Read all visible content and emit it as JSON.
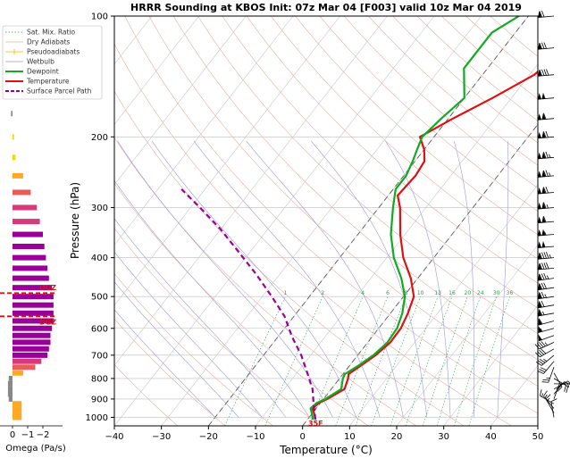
{
  "chart_data": {
    "type": "line",
    "title": "HRRR Sounding at KBOS Init: 07z Mar 04 [F003] valid 10z Mar 04 2019",
    "xlabel": "Temperature (°C)",
    "ylabel": "Pressure (hPa)",
    "xlim": [
      -40,
      50
    ],
    "ylim": [
      1050,
      100
    ],
    "y_scale": "log",
    "x_ticks": [
      "−40",
      "−30",
      "−20",
      "−10",
      "0",
      "10",
      "20",
      "30",
      "40",
      "50"
    ],
    "y_ticks": [
      "100",
      "200",
      "300",
      "400",
      "500",
      "600",
      "700",
      "800",
      "900",
      "1000"
    ],
    "grid": true,
    "legend_position": "top-left",
    "legend": [
      "Sat. Mix. Ratio",
      "Dry Adiabats",
      "Pseudoadiabats",
      "Wetbulb",
      "Dewpoint",
      "Temperature",
      "Surface Parcel Path"
    ],
    "mixing_ratio_labels": [
      "1",
      "2",
      "4",
      "6",
      "8",
      "10",
      "13",
      "16",
      "20",
      "24",
      "30",
      "36"
    ],
    "surface_label": "35F",
    "series": [
      {
        "name": "Temperature",
        "color": "#dd1111",
        "points": [
          [
            1.7,
            1013
          ],
          [
            0.3,
            975
          ],
          [
            -0.8,
            950
          ],
          [
            -0.3,
            920
          ],
          [
            0.8,
            900
          ],
          [
            2.8,
            850
          ],
          [
            1.8,
            800
          ],
          [
            1.2,
            780
          ],
          [
            2.5,
            740
          ],
          [
            3.8,
            700
          ],
          [
            4.8,
            650
          ],
          [
            4.7,
            600
          ],
          [
            3.7,
            550
          ],
          [
            2.2,
            500
          ],
          [
            -1.5,
            450
          ],
          [
            -6.5,
            400
          ],
          [
            -11,
            350
          ],
          [
            -15.5,
            300
          ],
          [
            -18,
            280
          ],
          [
            -17.5,
            250
          ],
          [
            -18,
            230
          ],
          [
            -20,
            215
          ],
          [
            -23,
            200
          ],
          [
            -19,
            180
          ],
          [
            -14,
            160
          ],
          [
            -9,
            140
          ],
          [
            -7,
            120
          ],
          [
            -6,
            100
          ]
        ]
      },
      {
        "name": "Dewpoint",
        "color": "#11aa22",
        "points": [
          [
            1.2,
            1013
          ],
          [
            -0.2,
            975
          ],
          [
            -1.2,
            950
          ],
          [
            -0.8,
            920
          ],
          [
            0.4,
            900
          ],
          [
            2.1,
            850
          ],
          [
            0.7,
            800
          ],
          [
            0.4,
            780
          ],
          [
            2.0,
            740
          ],
          [
            3.3,
            700
          ],
          [
            4.2,
            650
          ],
          [
            3.9,
            600
          ],
          [
            2.5,
            550
          ],
          [
            0.3,
            500
          ],
          [
            -3.5,
            450
          ],
          [
            -8.5,
            400
          ],
          [
            -13,
            350
          ],
          [
            -17,
            300
          ],
          [
            -19.5,
            270
          ],
          [
            -19.5,
            250
          ],
          [
            -20.5,
            230
          ],
          [
            -21.5,
            215
          ],
          [
            -22.5,
            200
          ],
          [
            -21.5,
            180
          ],
          [
            -20,
            160
          ],
          [
            -25,
            135
          ],
          [
            -25,
            110
          ],
          [
            -22,
            100
          ]
        ]
      },
      {
        "name": "Surface Parcel Path",
        "color": "#990099",
        "points": [
          [
            1.7,
            1013
          ],
          [
            -1.5,
            920
          ],
          [
            -4,
            850
          ],
          [
            -7.5,
            780
          ],
          [
            -12,
            700
          ],
          [
            -17,
            630
          ],
          [
            -22,
            560
          ],
          [
            -28,
            500
          ],
          [
            -35,
            440
          ],
          [
            -42,
            390
          ],
          [
            -50,
            340
          ],
          [
            -58,
            300
          ],
          [
            -65,
            270
          ]
        ]
      }
    ],
    "omega": {
      "xlabel": "Omega (Pa/s)",
      "x_ticks": [
        "0",
        "−1",
        "−2"
      ],
      "labels": [
        "DGZ",
        "DGZ"
      ],
      "bars": [
        {
          "p": 1000,
          "v": -0.6
        },
        {
          "p": 975,
          "v": -0.6
        },
        {
          "p": 950,
          "v": -0.6
        },
        {
          "p": 925,
          "v": -0.6
        },
        {
          "p": 900,
          "v": 0.25
        },
        {
          "p": 875,
          "v": 0.3
        },
        {
          "p": 850,
          "v": 0.3
        },
        {
          "p": 825,
          "v": 0.3
        },
        {
          "p": 800,
          "v": 0.25
        },
        {
          "p": 775,
          "v": -0.7
        },
        {
          "p": 750,
          "v": -1.5
        },
        {
          "p": 725,
          "v": -1.9
        },
        {
          "p": 700,
          "v": -2.3
        },
        {
          "p": 675,
          "v": -2.4
        },
        {
          "p": 650,
          "v": -2.5
        },
        {
          "p": 625,
          "v": -2.5
        },
        {
          "p": 600,
          "v": -2.6
        },
        {
          "p": 575,
          "v": -2.7
        },
        {
          "p": 550,
          "v": -2.7
        },
        {
          "p": 525,
          "v": -2.7
        },
        {
          "p": 500,
          "v": -2.7
        },
        {
          "p": 475,
          "v": -2.6
        },
        {
          "p": 450,
          "v": -2.4
        },
        {
          "p": 425,
          "v": -2.3
        },
        {
          "p": 400,
          "v": -2.2
        },
        {
          "p": 375,
          "v": -2.1
        },
        {
          "p": 350,
          "v": -2.0
        },
        {
          "p": 325,
          "v": -1.8
        },
        {
          "p": 300,
          "v": -1.6
        },
        {
          "p": 275,
          "v": -1.2
        },
        {
          "p": 250,
          "v": -0.7
        },
        {
          "p": 225,
          "v": -0.2
        },
        {
          "p": 200,
          "v": -0.1
        },
        {
          "p": 175,
          "v": 0.1
        },
        {
          "p": 150,
          "v": 0.05
        },
        {
          "p": 125,
          "v": 0.02
        }
      ]
    },
    "wind_barbs": [
      {
        "p": 1000,
        "spd": 10,
        "dir": 350
      },
      {
        "p": 975,
        "spd": 15,
        "dir": 330
      },
      {
        "p": 950,
        "spd": 15,
        "dir": 320
      },
      {
        "p": 925,
        "spd": 15,
        "dir": 300
      },
      {
        "p": 900,
        "spd": 10,
        "dir": 20
      },
      {
        "p": 875,
        "spd": 10,
        "dir": 40
      },
      {
        "p": 850,
        "spd": 10,
        "dir": 60
      },
      {
        "p": 825,
        "spd": 15,
        "dir": 90
      },
      {
        "p": 800,
        "spd": 20,
        "dir": 120
      },
      {
        "p": 775,
        "spd": 20,
        "dir": 150
      },
      {
        "p": 750,
        "spd": 25,
        "dir": 200
      },
      {
        "p": 725,
        "spd": 30,
        "dir": 220
      },
      {
        "p": 700,
        "spd": 35,
        "dir": 230
      },
      {
        "p": 675,
        "spd": 40,
        "dir": 240
      },
      {
        "p": 650,
        "spd": 45,
        "dir": 245
      },
      {
        "p": 625,
        "spd": 50,
        "dir": 250
      },
      {
        "p": 600,
        "spd": 55,
        "dir": 255
      },
      {
        "p": 575,
        "spd": 60,
        "dir": 255
      },
      {
        "p": 550,
        "spd": 65,
        "dir": 260
      },
      {
        "p": 525,
        "spd": 70,
        "dir": 260
      },
      {
        "p": 500,
        "spd": 75,
        "dir": 262
      },
      {
        "p": 475,
        "spd": 80,
        "dir": 262
      },
      {
        "p": 450,
        "spd": 85,
        "dir": 262
      },
      {
        "p": 425,
        "spd": 90,
        "dir": 265
      },
      {
        "p": 400,
        "spd": 95,
        "dir": 265
      },
      {
        "p": 375,
        "spd": 100,
        "dir": 265
      },
      {
        "p": 350,
        "spd": 105,
        "dir": 265
      },
      {
        "p": 325,
        "spd": 110,
        "dir": 265
      },
      {
        "p": 300,
        "spd": 115,
        "dir": 265
      },
      {
        "p": 275,
        "spd": 120,
        "dir": 265
      },
      {
        "p": 250,
        "spd": 125,
        "dir": 265
      },
      {
        "p": 225,
        "spd": 125,
        "dir": 265
      },
      {
        "p": 200,
        "spd": 120,
        "dir": 265
      },
      {
        "p": 180,
        "spd": 110,
        "dir": 265
      },
      {
        "p": 160,
        "spd": 100,
        "dir": 265
      },
      {
        "p": 140,
        "spd": 90,
        "dir": 265
      },
      {
        "p": 120,
        "spd": 80,
        "dir": 265
      },
      {
        "p": 100,
        "spd": 70,
        "dir": 265
      }
    ]
  }
}
